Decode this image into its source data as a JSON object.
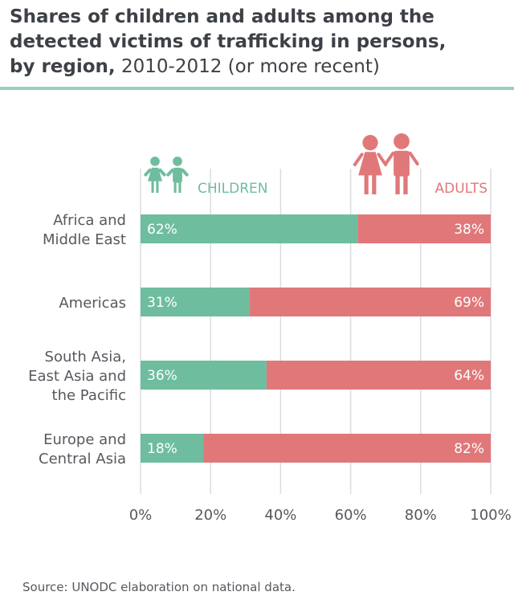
{
  "title": {
    "line1": "Shares of children and adults among the",
    "line2": "detected victims of trafficking in persons,",
    "line3_bold": "by region,",
    "line3_rest": " 2010-2012 (or more recent)"
  },
  "colors": {
    "children": "#6fbd9f",
    "adults": "#e0787a",
    "grid": "#d9dde0",
    "text": "#55595e"
  },
  "legend": {
    "children": "CHILDREN",
    "adults": "ADULTS",
    "children_icon": "children-icon",
    "adults_icon": "adults-icon"
  },
  "chart_data": {
    "type": "bar",
    "orientation": "horizontal",
    "stacked": true,
    "categories": [
      [
        "Africa and",
        "Middle East"
      ],
      [
        "Americas"
      ],
      [
        "South Asia,",
        "East Asia and",
        "the Pacific"
      ],
      [
        "Europe and",
        "Central Asia"
      ]
    ],
    "series": [
      {
        "name": "CHILDREN",
        "values": [
          62,
          31,
          36,
          18
        ],
        "labels": [
          "62%",
          "31%",
          "36%",
          "18%"
        ]
      },
      {
        "name": "ADULTS",
        "values": [
          38,
          69,
          64,
          82
        ],
        "labels": [
          "38%",
          "69%",
          "64%",
          "82%"
        ]
      }
    ],
    "xticks": [
      "0%",
      "20%",
      "40%",
      "60%",
      "80%",
      "100%"
    ],
    "xlim": [
      0,
      100
    ],
    "grid": true
  },
  "source": "Source: UNODC elaboration on national data."
}
